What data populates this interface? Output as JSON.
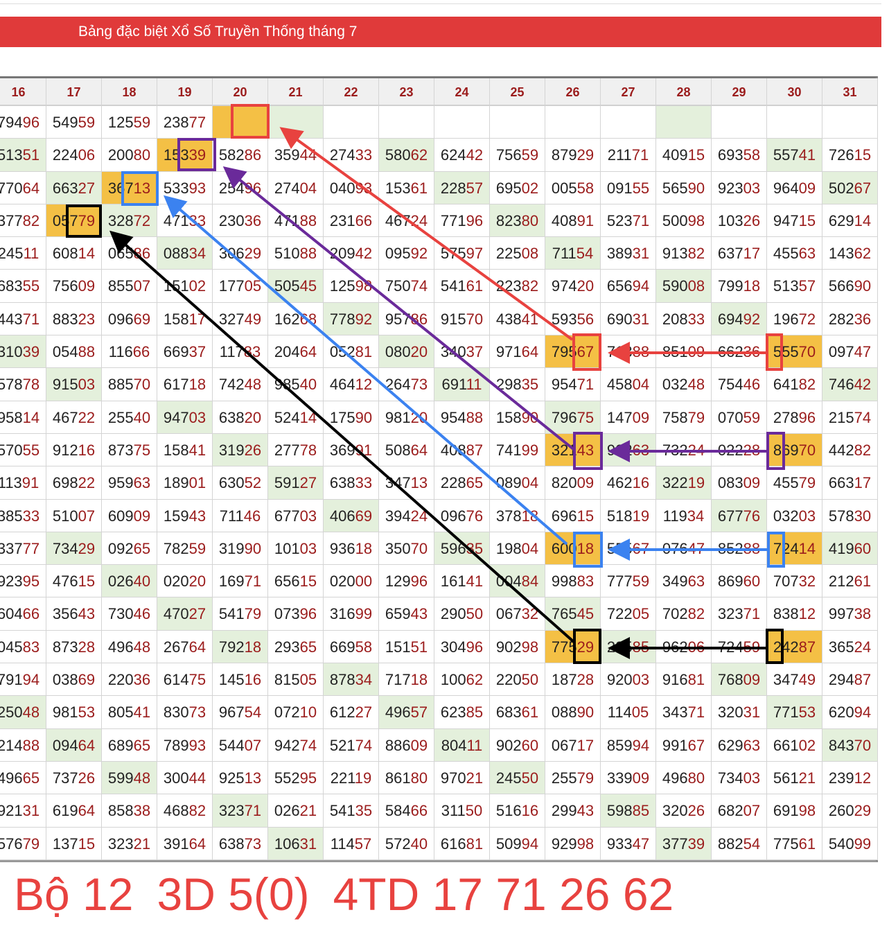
{
  "title": "Bảng đặc biệt Xổ Số Truyền Thống tháng 7",
  "colors": {
    "title_bar": "#e03a3a",
    "green_cell": "#e4f0dc",
    "orange_cell": "#f4c045",
    "digit_tail": "#9b1c1c"
  },
  "table": {
    "headers": [
      "16",
      "17",
      "18",
      "19",
      "20",
      "21",
      "22",
      "23",
      "24",
      "25",
      "26",
      "27",
      "28",
      "29",
      "30",
      "31"
    ],
    "rows": [
      [
        "79496",
        "54959",
        "12559",
        "23877",
        "",
        "",
        "",
        "",
        "",
        "",
        "",
        "",
        "",
        "",
        "",
        ""
      ],
      [
        "51351",
        "22406",
        "20080",
        "15339",
        "58286",
        "35944",
        "27433",
        "58062",
        "62442",
        "75659",
        "87929",
        "21171",
        "40915",
        "69358",
        "55741",
        "72615"
      ],
      [
        "77064",
        "66327",
        "36713",
        "53393",
        "25496",
        "27404",
        "04093",
        "15361",
        "22857",
        "69502",
        "00558",
        "09155",
        "56590",
        "92303",
        "96409",
        "50267"
      ],
      [
        "37782",
        "05779",
        "32872",
        "47133",
        "23036",
        "47188",
        "23166",
        "46724",
        "77196",
        "82380",
        "40891",
        "52371",
        "50098",
        "10326",
        "94715",
        "62914"
      ],
      [
        "24511",
        "60814",
        "06586",
        "08834",
        "30629",
        "51088",
        "20942",
        "09592",
        "57597",
        "22508",
        "71154",
        "38931",
        "91382",
        "63717",
        "45563",
        "14362"
      ],
      [
        "68355",
        "75609",
        "85507",
        "15102",
        "17705",
        "50545",
        "12598",
        "75074",
        "54161",
        "22382",
        "97420",
        "65694",
        "59008",
        "79918",
        "51357",
        "56690"
      ],
      [
        "44371",
        "88323",
        "09669",
        "15817",
        "32749",
        "16268",
        "77892",
        "95786",
        "91570",
        "43841",
        "59356",
        "69031",
        "20833",
        "69492",
        "19672",
        "28236"
      ],
      [
        "31039",
        "05488",
        "11666",
        "66937",
        "11783",
        "20464",
        "05281",
        "08020",
        "34037",
        "97164",
        "79567",
        "71388",
        "85109",
        "66236",
        "55570",
        "09747"
      ],
      [
        "57878",
        "91503",
        "88570",
        "61718",
        "74248",
        "98540",
        "46412",
        "26473",
        "69111",
        "29835",
        "95471",
        "45804",
        "03248",
        "75446",
        "64182",
        "74642"
      ],
      [
        "95814",
        "46722",
        "25540",
        "94703",
        "63820",
        "52414",
        "17590",
        "98120",
        "95488",
        "15890",
        "79675",
        "14709",
        "75879",
        "07059",
        "27896",
        "21574"
      ],
      [
        "57055",
        "91216",
        "87375",
        "15841",
        "31926",
        "27778",
        "36991",
        "50864",
        "40887",
        "74199",
        "32143",
        "92263",
        "73224",
        "02228",
        "86970",
        "44282"
      ],
      [
        "11391",
        "69822",
        "95963",
        "18901",
        "63052",
        "59127",
        "63833",
        "34713",
        "22865",
        "08904",
        "82009",
        "46216",
        "32219",
        "08309",
        "45579",
        "66317"
      ],
      [
        "38533",
        "51007",
        "60909",
        "15943",
        "71146",
        "67703",
        "40669",
        "39424",
        "09676",
        "37818",
        "69615",
        "51819",
        "11934",
        "67776",
        "03203",
        "57830"
      ],
      [
        "33777",
        "73429",
        "09265",
        "78259",
        "31990",
        "10103",
        "93618",
        "35070",
        "59635",
        "19804",
        "60018",
        "55567",
        "07647",
        "85288",
        "72414",
        "41960"
      ],
      [
        "92395",
        "47615",
        "02640",
        "02020",
        "16971",
        "65615",
        "02000",
        "12996",
        "16141",
        "00484",
        "99883",
        "77759",
        "34963",
        "86960",
        "70732",
        "21261"
      ],
      [
        "60466",
        "35643",
        "73046",
        "47027",
        "54179",
        "07396",
        "31699",
        "65943",
        "29050",
        "06732",
        "76545",
        "72205",
        "70282",
        "32371",
        "83812",
        "99738"
      ],
      [
        "04583",
        "87328",
        "49648",
        "26764",
        "79218",
        "29365",
        "66958",
        "15151",
        "30496",
        "90298",
        "77529",
        "28585",
        "96206",
        "72459",
        "24287",
        "36524"
      ],
      [
        "79194",
        "03869",
        "22036",
        "61475",
        "14516",
        "81505",
        "87834",
        "71718",
        "10062",
        "22050",
        "18728",
        "92003",
        "91681",
        "76809",
        "34749",
        "29487"
      ],
      [
        "25048",
        "98153",
        "80541",
        "83073",
        "96754",
        "07210",
        "61227",
        "49657",
        "62385",
        "68361",
        "08890",
        "11405",
        "34371",
        "32031",
        "77153",
        "62094"
      ],
      [
        "21488",
        "09464",
        "68965",
        "78993",
        "54407",
        "94274",
        "52174",
        "88609",
        "80411",
        "90260",
        "06717",
        "85994",
        "99167",
        "62963",
        "66102",
        "84370"
      ],
      [
        "49665",
        "73726",
        "59948",
        "30044",
        "92513",
        "55295",
        "22119",
        "86180",
        "97021",
        "24550",
        "25579",
        "33909",
        "49680",
        "73403",
        "56121",
        "23912"
      ],
      [
        "92131",
        "61964",
        "85838",
        "46882",
        "32371",
        "02621",
        "54135",
        "58466",
        "31150",
        "51616",
        "29943",
        "59885",
        "32026",
        "68207",
        "69198",
        "26029"
      ],
      [
        "57679",
        "13715",
        "32321",
        "39164",
        "63873",
        "10631",
        "11457",
        "57240",
        "61681",
        "50994",
        "92998",
        "93347",
        "37739",
        "88254",
        "77561",
        "54099"
      ]
    ],
    "highlight": [
      "....og......g...",
      "g..o...g......g.",
      ".go.....g......g",
      ".og......g......",
      "...g......g.....",
      ".....g......g...",
      "......g......g..",
      "g......g..o...o.",
      ".g......g......g",
      "...g......g.....",
      "....g.....og..o.",
      ".....g......g...",
      "......g......g..",
      ".g......g.o...og",
      "..g......g......",
      "...g......g.....",
      "....g.....og..o.",
      "......g......g..",
      "g......g......g.",
      ".g......g......g",
      "..g......g......",
      "....g......g....",
      ".....g......g..."
    ]
  },
  "annotations": {
    "line1": "Bộ 12",
    "line2": "3D 5(0)",
    "line3": "4TD 17 71 26 62",
    "marker_colors": {
      "red": "#e8423f",
      "purple": "#6a2a9a",
      "blue": "#3b82f0",
      "black": "#000000"
    }
  }
}
